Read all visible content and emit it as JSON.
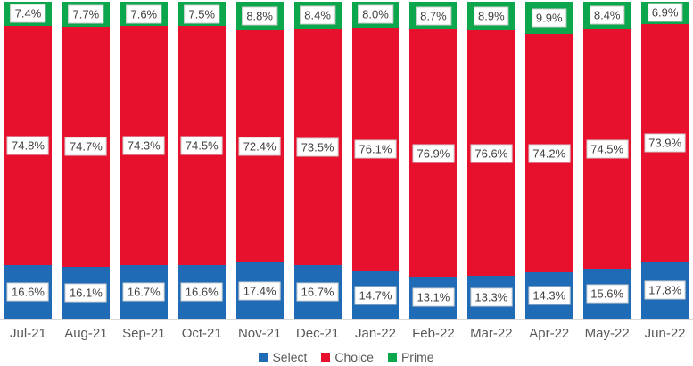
{
  "chart_data": {
    "type": "bar",
    "stacked": true,
    "percent_stacked": true,
    "title": "",
    "xlabel": "",
    "ylabel": "",
    "ylim": [
      0,
      100
    ],
    "grid": false,
    "legend_position": "bottom",
    "categories": [
      "Jul-21",
      "Aug-21",
      "Sep-21",
      "Oct-21",
      "Nov-21",
      "Dec-21",
      "Jan-22",
      "Feb-22",
      "Mar-22",
      "Apr-22",
      "May-22",
      "Jun-22"
    ],
    "series": [
      {
        "name": "Select",
        "color": "#1F6BB5",
        "values": [
          16.6,
          16.1,
          16.7,
          16.6,
          17.4,
          16.7,
          14.7,
          13.1,
          13.3,
          14.3,
          15.6,
          17.8
        ],
        "labels": [
          "16.6%",
          "16.1%",
          "16.7%",
          "16.6%",
          "17.4%",
          "16.7%",
          "14.7%",
          "13.1%",
          "13.3%",
          "14.3%",
          "15.6%",
          "17.8%"
        ]
      },
      {
        "name": "Choice",
        "color": "#E8112D",
        "values": [
          74.8,
          74.7,
          74.3,
          74.5,
          72.4,
          73.5,
          76.1,
          76.9,
          76.6,
          74.2,
          74.5,
          73.9
        ],
        "labels": [
          "74.8%",
          "74.7%",
          "74.3%",
          "74.5%",
          "72.4%",
          "73.5%",
          "76.1%",
          "76.9%",
          "76.6%",
          "74.2%",
          "74.5%",
          "73.9%"
        ]
      },
      {
        "name": "Prime",
        "color": "#0CA64C",
        "values": [
          7.4,
          7.7,
          7.6,
          7.5,
          8.8,
          8.4,
          8.0,
          8.7,
          8.9,
          9.9,
          8.4,
          6.9
        ],
        "labels": [
          "7.4%",
          "7.7%",
          "7.6%",
          "7.5%",
          "8.8%",
          "8.4%",
          "8.0%",
          "8.7%",
          "8.9%",
          "9.9%",
          "8.4%",
          "6.9%"
        ]
      }
    ],
    "label_text_color": "#3F3F3F",
    "axis_text_color": "#595959",
    "baseline_color": "#D9D9D9"
  }
}
